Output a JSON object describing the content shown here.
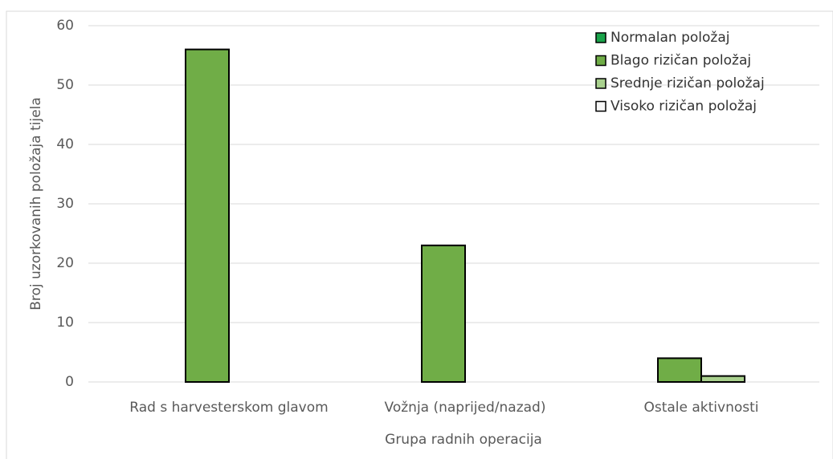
{
  "chart_data": {
    "type": "bar",
    "x_label": "Grupa radnih operacija",
    "y_label": "Broj uzorkovanih položaja tijela",
    "categories": [
      "Rad s harvesterskom glavom",
      "Vožnja (naprijed/nazad)",
      "Ostale aktivnosti"
    ],
    "series": [
      {
        "name": "Normalan položaj",
        "color": "#1aa34a",
        "values": [
          0,
          0,
          0
        ]
      },
      {
        "name": "Blago rizičan položaj",
        "color": "#70ad47",
        "values": [
          56,
          23,
          4
        ]
      },
      {
        "name": "Srednje rizičan položaj",
        "color": "#a9d18e",
        "values": [
          0,
          0,
          1
        ]
      },
      {
        "name": "Visoko rizičan položaj",
        "color": "#f7f7f7",
        "values": [
          0,
          0,
          0
        ]
      }
    ],
    "ylim": [
      0,
      60
    ],
    "yticks": [
      0,
      10,
      20,
      30,
      40,
      50,
      60
    ],
    "grid": true,
    "legend": "upper right"
  }
}
